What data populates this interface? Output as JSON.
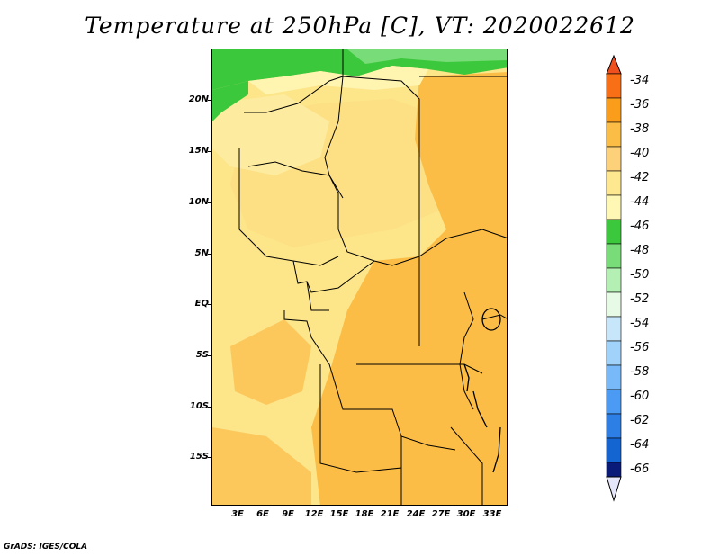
{
  "title": "Temperature at 250hPa [C], VT: 2020022612",
  "footer": "GrADS: IGES/COLA",
  "map": {
    "lat_labels": [
      "20N",
      "15N",
      "10N",
      "5N",
      "EQ",
      "5S",
      "10S",
      "15S"
    ],
    "lon_labels": [
      "3E",
      "6E",
      "9E",
      "12E",
      "15E",
      "18E",
      "21E",
      "24E",
      "27E",
      "30E",
      "33E"
    ]
  },
  "legend": {
    "labels": [
      "-34",
      "-36",
      "-38",
      "-40",
      "-42",
      "-44",
      "-46",
      "-48",
      "-50",
      "-52",
      "-54",
      "-56",
      "-58",
      "-60",
      "-62",
      "-64",
      "-66"
    ],
    "colors": [
      "#f0501e",
      "#fa7d0a",
      "#fab432",
      "#fdd07a",
      "#fde88f",
      "#fff8b4",
      "#3cc83c",
      "#78dc78",
      "#b4f0b4",
      "#e6fae6",
      "#c8e6fa",
      "#a0d2fa",
      "#78b9fa",
      "#4b9bf5",
      "#2d7fe6",
      "#1464d2",
      "#0a3cb4",
      "#0a1a78",
      "#e6e6fa"
    ]
  },
  "colors": {
    "border": "#000000",
    "background": "#ffffff"
  }
}
